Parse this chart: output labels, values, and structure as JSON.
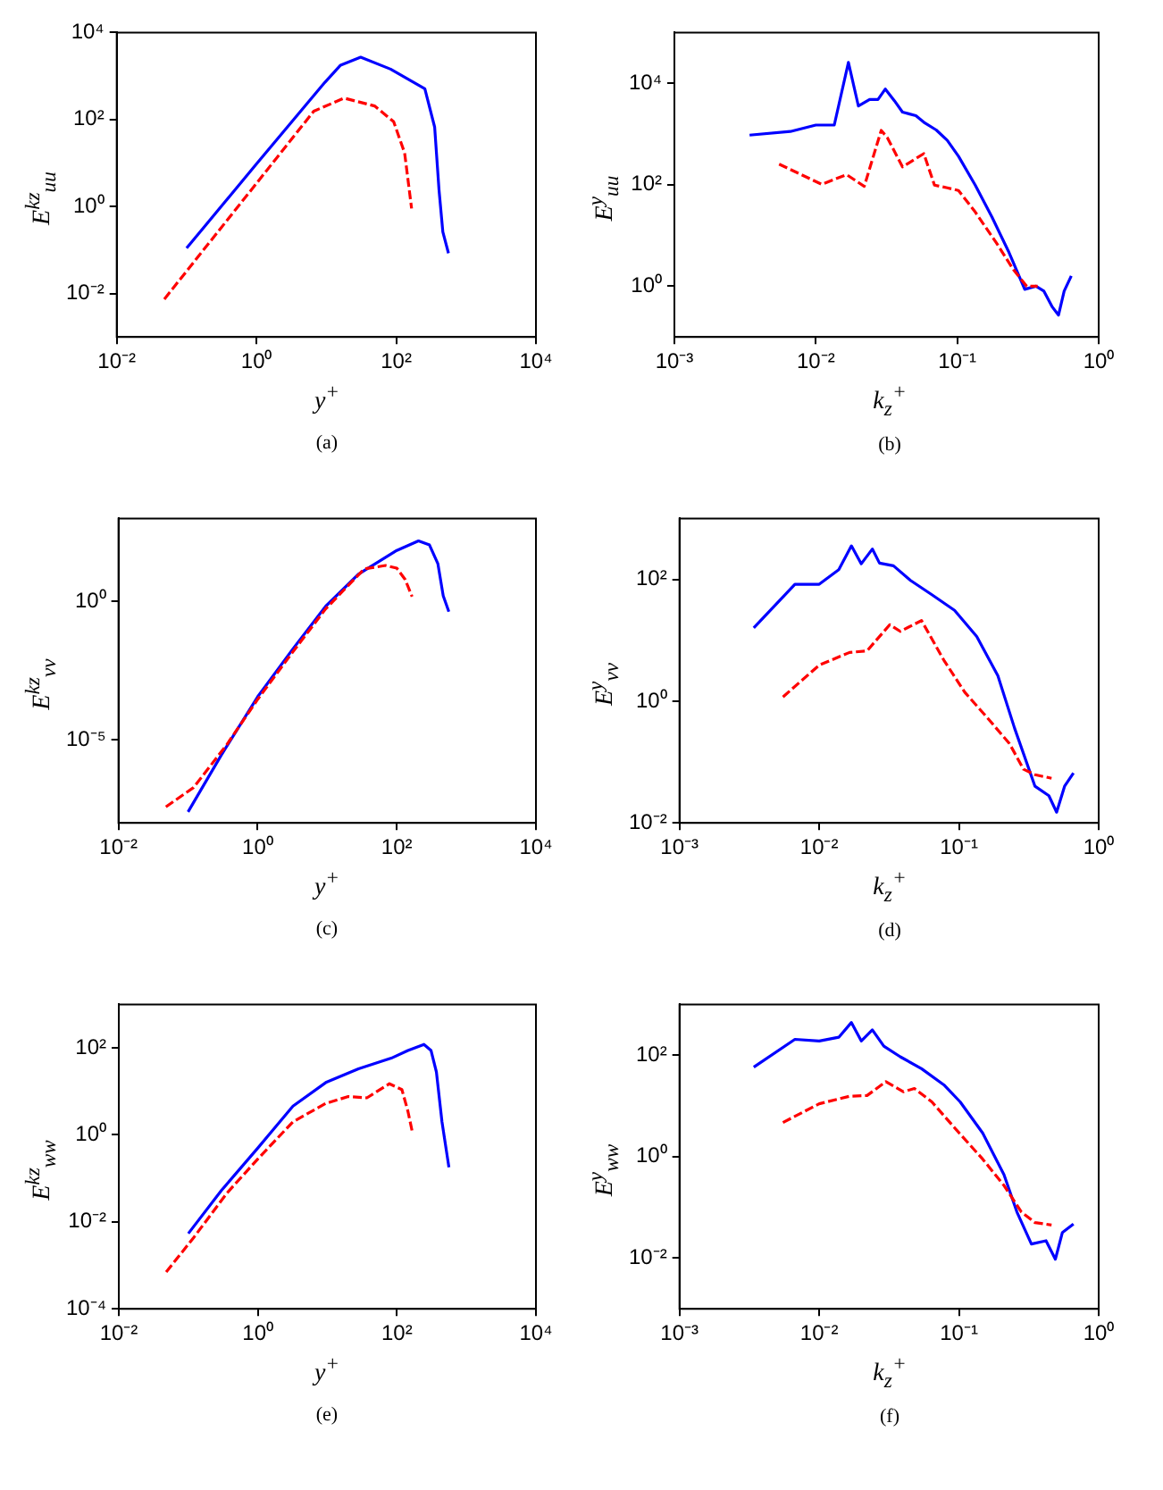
{
  "chart_data": [
    {
      "type": "line",
      "xlabel": "y$^{+}$",
      "ylabel": "E$^{kz}$$_{uu}$",
      "annotations": [
        "(a)"
      ],
      "log": "xy",
      "grid": false,
      "legend": false,
      "marker": "none",
      "xlim": [
        0.01,
        10000
      ],
      "ylim": [
        0.001,
        10000
      ],
      "xticks": [
        {
          "value": 0.01,
          "label": "10⁻²"
        },
        {
          "value": 1,
          "label": "10⁰"
        },
        {
          "value": 100,
          "label": "10²"
        },
        {
          "value": 10000,
          "label": "10⁴"
        }
      ],
      "yticks": [
        {
          "value": 0.01,
          "label": "10⁻²"
        },
        {
          "value": 1,
          "label": "10⁰"
        },
        {
          "value": 100,
          "label": "10²"
        },
        {
          "value": 10000,
          "label": "10⁴"
        }
      ],
      "series": [
        {
          "color": "#0000ff",
          "line_style": "solid",
          "x": [
            0.1,
            1,
            9.5,
            16,
            31,
            83,
            257,
            355,
            410,
            465,
            560
          ],
          "values": [
            0.11,
            9.5,
            710,
            1780,
            2700,
            1440,
            510,
            67,
            2.4,
            0.26,
            0.084
          ]
        },
        {
          "color": "#ff0000",
          "line_style": "dashed",
          "x": [
            0.048,
            1,
            6.6,
            18,
            49,
            92,
            132,
            166
          ],
          "values": [
            0.0074,
            3.4,
            155,
            310,
            205,
            89,
            17,
            0.9
          ]
        }
      ]
    },
    {
      "type": "line",
      "xlabel": "k$_{z}$$^{+}$",
      "ylabel": "E$^{y}$$_{uu}$",
      "annotations": [
        "(b)"
      ],
      "log": "xy",
      "grid": false,
      "legend": false,
      "marker": "none",
      "xlim": [
        0.001,
        1
      ],
      "ylim": [
        0.1,
        100000
      ],
      "xticks": [
        {
          "value": 0.001,
          "label": "10⁻³"
        },
        {
          "value": 0.01,
          "label": "10⁻²"
        },
        {
          "value": 0.1,
          "label": "10⁻¹"
        },
        {
          "value": 1,
          "label": "10⁰"
        }
      ],
      "yticks": [
        {
          "value": 1,
          "label": "10⁰"
        },
        {
          "value": 100,
          "label": "10²"
        },
        {
          "value": 10000,
          "label": "10⁴"
        }
      ],
      "series": [
        {
          "color": "#0000ff",
          "line_style": "solid",
          "x": [
            0.0034,
            0.0066,
            0.01,
            0.0135,
            0.017,
            0.02,
            0.024,
            0.0275,
            0.031,
            0.036,
            0.041,
            0.051,
            0.059,
            0.071,
            0.085,
            0.102,
            0.134,
            0.176,
            0.23,
            0.3,
            0.36,
            0.41,
            0.47,
            0.52,
            0.57,
            0.64
          ],
          "values": [
            950,
            1120,
            1500,
            1500,
            25700,
            3550,
            4800,
            4800,
            7700,
            4500,
            2700,
            2300,
            1650,
            1200,
            750,
            365,
            98,
            23,
            4.9,
            0.87,
            1,
            0.8,
            0.39,
            0.27,
            0.8,
            1.6
          ]
        },
        {
          "color": "#ff0000",
          "line_style": "dashed",
          "x": [
            0.0055,
            0.011,
            0.0165,
            0.022,
            0.029,
            0.032,
            0.041,
            0.058,
            0.069,
            0.085,
            0.102,
            0.134,
            0.19,
            0.25,
            0.31,
            0.37
          ],
          "values": [
            255,
            102,
            158,
            93,
            1180,
            850,
            225,
            410,
            98,
            87,
            77,
            29,
            7,
            2.1,
            1,
            1
          ]
        }
      ]
    },
    {
      "type": "line",
      "xlabel": "y$^{+}$",
      "ylabel": "E$^{kz}$$_{vv}$",
      "annotations": [
        "(c)"
      ],
      "log": "xy",
      "grid": false,
      "legend": false,
      "marker": "none",
      "xlim": [
        0.01,
        10000
      ],
      "ylim": [
        1e-08,
        1000
      ],
      "xticks": [
        {
          "value": 0.01,
          "label": "10⁻²"
        },
        {
          "value": 1,
          "label": "10⁰"
        },
        {
          "value": 100,
          "label": "10²"
        },
        {
          "value": 10000,
          "label": "10⁴"
        }
      ],
      "yticks": [
        {
          "value": 1e-05,
          "label": "10⁻⁵"
        },
        {
          "value": 1,
          "label": "10⁰"
        }
      ],
      "series": [
        {
          "color": "#0000ff",
          "line_style": "solid",
          "x": [
            0.1,
            0.3,
            1,
            3.2,
            9.5,
            28,
            100,
            205,
            295,
            390,
            465,
            560
          ],
          "values": [
            2.5e-08,
            2.8e-06,
            0.00036,
            0.019,
            0.67,
            9.6,
            70,
            155,
            110,
            23,
            1.6,
            0.43
          ]
        },
        {
          "color": "#ff0000",
          "line_style": "dashed",
          "x": [
            0.048,
            0.12,
            0.36,
            1,
            3.2,
            9.5,
            34,
            69,
            100,
            132,
            166
          ],
          "values": [
            3.8e-08,
            1.9e-07,
            6.7e-06,
            0.00029,
            0.015,
            0.54,
            15,
            20,
            16,
            6.2,
            1.5
          ]
        }
      ]
    },
    {
      "type": "line",
      "xlabel": "k$_{z}$$^{+}$",
      "ylabel": "E$^{y}$$_{vv}$",
      "annotations": [
        "(d)"
      ],
      "log": "xy",
      "grid": false,
      "legend": false,
      "marker": "none",
      "xlim": [
        0.001,
        1
      ],
      "ylim": [
        0.01,
        1000
      ],
      "xticks": [
        {
          "value": 0.001,
          "label": "10⁻³"
        },
        {
          "value": 0.01,
          "label": "10⁻²"
        },
        {
          "value": 0.1,
          "label": "10⁻¹"
        },
        {
          "value": 1,
          "label": "10⁰"
        }
      ],
      "yticks": [
        {
          "value": 0.01,
          "label": "10⁻²"
        },
        {
          "value": 1,
          "label": "10⁰"
        },
        {
          "value": 100,
          "label": "10²"
        }
      ],
      "series": [
        {
          "color": "#0000ff",
          "line_style": "solid",
          "x": [
            0.0034,
            0.0067,
            0.01,
            0.0138,
            0.017,
            0.02,
            0.024,
            0.027,
            0.034,
            0.045,
            0.064,
            0.093,
            0.134,
            0.19,
            0.25,
            0.35,
            0.44,
            0.5,
            0.57,
            0.66
          ],
          "values": [
            16,
            83,
            83,
            144,
            355,
            180,
            315,
            185,
            167,
            96,
            56,
            31,
            11.5,
            2.6,
            0.36,
            0.04,
            0.028,
            0.015,
            0.04,
            0.066
          ]
        },
        {
          "color": "#ff0000",
          "line_style": "dashed",
          "x": [
            0.0055,
            0.01,
            0.0165,
            0.022,
            0.032,
            0.038,
            0.054,
            0.078,
            0.11,
            0.16,
            0.23,
            0.29,
            0.35,
            0.46
          ],
          "values": [
            1.17,
            3.9,
            6.3,
            6.7,
            18,
            14,
            21,
            4.7,
            1.4,
            0.53,
            0.2,
            0.076,
            0.062,
            0.054
          ]
        }
      ]
    },
    {
      "type": "line",
      "xlabel": "y$^{+}$",
      "ylabel": "E$^{kz}$$_{ww}$",
      "annotations": [
        "(e)"
      ],
      "log": "xy",
      "grid": false,
      "legend": false,
      "marker": "none",
      "xlim": [
        0.01,
        10000
      ],
      "ylim": [
        0.0001,
        1000
      ],
      "xticks": [
        {
          "value": 0.01,
          "label": "10⁻²"
        },
        {
          "value": 1,
          "label": "10⁰"
        },
        {
          "value": 100,
          "label": "10²"
        },
        {
          "value": 10000,
          "label": "10⁴"
        }
      ],
      "yticks": [
        {
          "value": 0.0001,
          "label": "10⁻⁴"
        },
        {
          "value": 0.01,
          "label": "10⁻²"
        },
        {
          "value": 1,
          "label": "10⁰"
        },
        {
          "value": 100,
          "label": "10²"
        }
      ],
      "series": [
        {
          "color": "#0000ff",
          "line_style": "solid",
          "x": [
            0.1,
            0.3,
            1,
            3.2,
            9.5,
            28,
            83,
            144,
            245,
            310,
            370,
            445,
            560
          ],
          "values": [
            0.0054,
            0.053,
            0.5,
            4.6,
            16,
            33,
            58,
            87,
            120,
            87,
            28,
            2,
            0.18
          ]
        },
        {
          "color": "#ff0000",
          "line_style": "dashed",
          "x": [
            0.048,
            0.12,
            0.36,
            1,
            3.2,
            9.5,
            20,
            37,
            78,
            118,
            144,
            166
          ],
          "values": [
            0.0007,
            0.0044,
            0.046,
            0.28,
            2,
            5.3,
            7.6,
            7.1,
            15,
            11,
            3.5,
            1.2
          ]
        }
      ]
    },
    {
      "type": "line",
      "xlabel": "k$_{z}$$^{+}$",
      "ylabel": "E$^{y}$$_{ww}$",
      "annotations": [
        "(f)"
      ],
      "log": "xy",
      "grid": false,
      "legend": false,
      "marker": "none",
      "xlim": [
        0.001,
        1
      ],
      "ylim": [
        0.001,
        1000
      ],
      "xticks": [
        {
          "value": 0.001,
          "label": "10⁻³"
        },
        {
          "value": 0.01,
          "label": "10⁻²"
        },
        {
          "value": 0.1,
          "label": "10⁻¹"
        },
        {
          "value": 1,
          "label": "10⁰"
        }
      ],
      "yticks": [
        {
          "value": 0.01,
          "label": "10⁻²"
        },
        {
          "value": 1,
          "label": "10⁰"
        },
        {
          "value": 100,
          "label": "10²"
        }
      ],
      "series": [
        {
          "color": "#0000ff",
          "line_style": "solid",
          "x": [
            0.0034,
            0.0067,
            0.01,
            0.0138,
            0.017,
            0.02,
            0.024,
            0.029,
            0.038,
            0.054,
            0.078,
            0.102,
            0.148,
            0.21,
            0.26,
            0.33,
            0.42,
            0.49,
            0.55,
            0.66
          ],
          "values": [
            58,
            205,
            190,
            225,
            440,
            190,
            315,
            150,
            93,
            54,
            26,
            12,
            2.9,
            0.44,
            0.081,
            0.019,
            0.022,
            0.0095,
            0.032,
            0.047
          ]
        },
        {
          "color": "#ff0000",
          "line_style": "dashed",
          "x": [
            0.0055,
            0.01,
            0.0165,
            0.022,
            0.03,
            0.04,
            0.048,
            0.064,
            0.093,
            0.148,
            0.21,
            0.28,
            0.35,
            0.46
          ],
          "values": [
            4.7,
            11,
            15.5,
            16,
            30,
            19,
            22,
            12,
            3.7,
            0.89,
            0.27,
            0.081,
            0.05,
            0.045
          ]
        }
      ]
    }
  ]
}
